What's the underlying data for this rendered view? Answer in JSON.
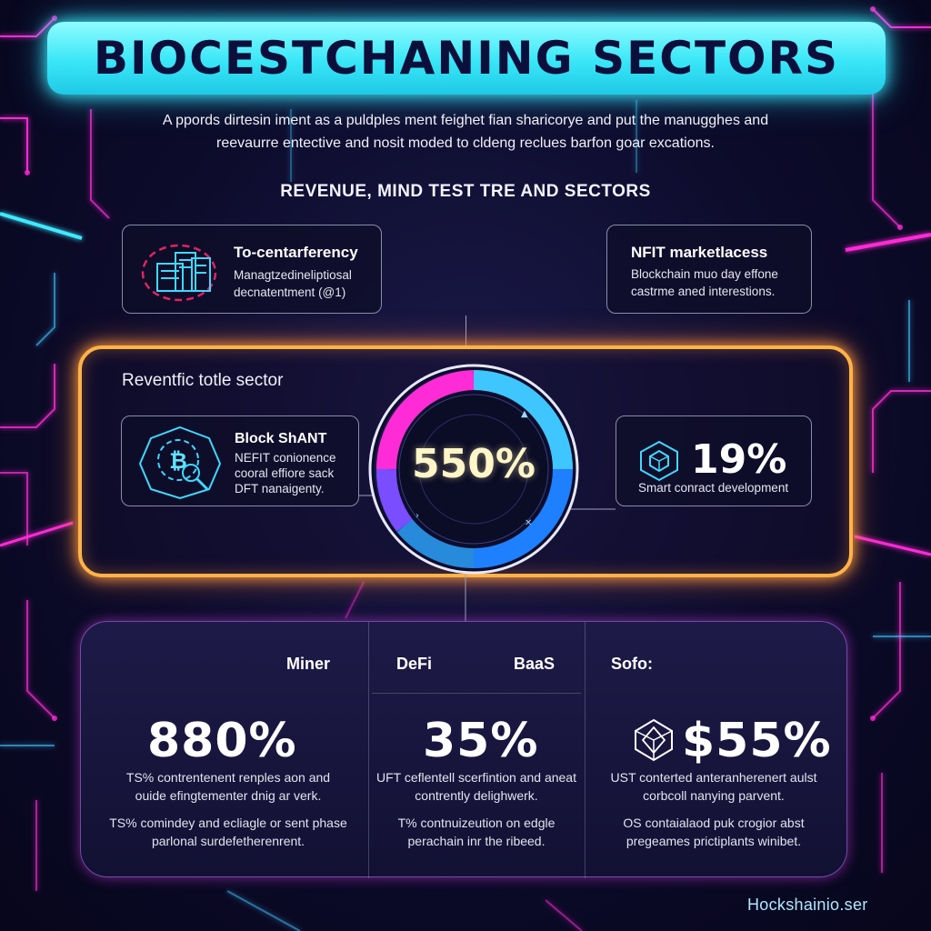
{
  "title": "BIOCESTCHANING SECTORS",
  "intro": "A ppords dirtesin iment as a puldples ment feighet fian sharicorye and put the manugghes and reevaurre entective and nosit moded to cldeng reclues barfon goar excations.",
  "section_heading": "REVENUE, MIND TEST TRE AND SECTORS",
  "top_cards": {
    "left": {
      "title": "To-centarferency",
      "desc": "Managtzedineliptiosal decnatentment (@1)",
      "icon": "server-stack-icon"
    },
    "right": {
      "title": "NFIT marketlacess",
      "desc": "Blockchain muo day effone castrme aned interestions."
    }
  },
  "revenue": {
    "label": "Reventfic totle sector",
    "gauge_value": "550%",
    "gauge_colors": [
      "#ff2bd6",
      "#3fc6ff",
      "#1e7fff"
    ],
    "block_card": {
      "title": "Block ShANT",
      "desc": "NEFIT conionence cooral effiore sack DFT nanaigenty.",
      "icon": "bitcoin-chip-icon"
    },
    "smart_card": {
      "value": "19%",
      "desc": "Smart conract development",
      "icon": "cube-icon"
    }
  },
  "bottom": {
    "columns": [
      {
        "label": "Miner",
        "value": "880%",
        "text1": "TS% contrentenent renples aon and ouide efingtementer dnig ar verk.",
        "text2": "TS% comindey and ecliagle or sent phase parlonal surdefetherenrent."
      },
      {
        "label": "DeFi",
        "label2": "BaaS",
        "value": "35%",
        "text1": "UFT ceflentell scerfintion and aneat contrently delighwerk.",
        "text2": "T% contnuizeution on edgle perachain inr the ribeed."
      },
      {
        "label": "Sofo:",
        "value": "$55%",
        "icon": "polyhedron-icon",
        "text1": "UST conterted anteranherenert aulst corbcoll nanying parvent.",
        "text2": "OS contaialaod puk crogior abst pregeames prictiplants winibet."
      }
    ]
  },
  "footer": "Hockshainio.ser",
  "colors": {
    "accent_cyan": "#3fe9ff",
    "accent_orange": "#ffb347",
    "accent_magenta": "#ff2bd6"
  }
}
